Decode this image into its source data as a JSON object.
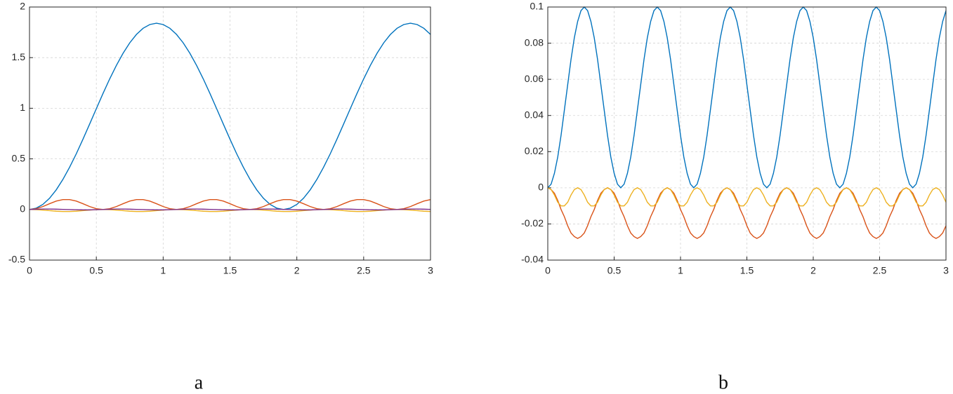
{
  "chart_data": [
    {
      "type": "line",
      "caption": "a",
      "x": [
        0,
        0.05,
        0.1,
        0.15,
        0.2,
        0.25,
        0.3,
        0.35,
        0.4,
        0.45,
        0.5,
        0.55,
        0.6,
        0.65,
        0.7,
        0.75,
        0.8,
        0.85,
        0.9,
        0.95,
        1,
        1.05,
        1.1,
        1.15,
        1.2,
        1.25,
        1.3,
        1.35,
        1.4,
        1.45,
        1.5,
        1.55,
        1.6,
        1.65,
        1.7,
        1.75,
        1.8,
        1.85,
        1.9,
        1.95,
        2,
        2.05,
        2.1,
        2.15,
        2.2,
        2.25,
        2.3,
        2.35,
        2.4,
        2.45,
        2.5,
        2.55,
        2.6,
        2.65,
        2.7,
        2.75,
        2.8,
        2.85,
        2.9,
        2.95,
        3
      ],
      "series": [
        {
          "color": "#0072bd",
          "values": [
            0,
            0.013,
            0.05,
            0.111,
            0.194,
            0.297,
            0.417,
            0.55,
            0.694,
            0.844,
            0.996,
            1.146,
            1.29,
            1.423,
            1.543,
            1.646,
            1.729,
            1.79,
            1.827,
            1.84,
            1.827,
            1.79,
            1.729,
            1.646,
            1.543,
            1.423,
            1.29,
            1.146,
            0.996,
            0.844,
            0.694,
            0.55,
            0.417,
            0.297,
            0.194,
            0.111,
            0.05,
            0.013,
            0,
            0.013,
            0.05,
            0.111,
            0.194,
            0.297,
            0.417,
            0.55,
            0.694,
            0.844,
            0.996,
            1.146,
            1.29,
            1.423,
            1.543,
            1.646,
            1.729,
            1.79,
            1.827,
            1.84,
            1.827,
            1.79,
            1.729
          ]
        },
        {
          "color": "#d95319",
          "values": [
            0,
            0.008,
            0.029,
            0.057,
            0.083,
            0.098,
            0.098,
            0.083,
            0.057,
            0.029,
            0.008,
            0,
            0.008,
            0.029,
            0.057,
            0.083,
            0.098,
            0.098,
            0.083,
            0.057,
            0.029,
            0.008,
            0,
            0.008,
            0.029,
            0.057,
            0.083,
            0.098,
            0.098,
            0.083,
            0.057,
            0.029,
            0.008,
            0,
            0.008,
            0.029,
            0.057,
            0.083,
            0.098,
            0.098,
            0.083,
            0.057,
            0.029,
            0.008,
            0,
            0.008,
            0.029,
            0.057,
            0.083,
            0.098,
            0.098,
            0.083,
            0.057,
            0.029,
            0.008,
            0,
            0.008,
            0.029,
            0.057,
            0.083,
            0.098
          ]
        },
        {
          "color": "#edb120",
          "values": [
            0,
            -0.002,
            -0.006,
            -0.011,
            -0.017,
            -0.02,
            -0.02,
            -0.017,
            -0.011,
            -0.006,
            -0.002,
            0,
            -0.002,
            -0.006,
            -0.011,
            -0.017,
            -0.02,
            -0.02,
            -0.017,
            -0.011,
            -0.006,
            -0.002,
            0,
            -0.002,
            -0.006,
            -0.011,
            -0.017,
            -0.02,
            -0.02,
            -0.017,
            -0.011,
            -0.006,
            -0.002,
            0,
            -0.002,
            -0.006,
            -0.011,
            -0.017,
            -0.02,
            -0.02,
            -0.017,
            -0.011,
            -0.006,
            -0.002,
            0,
            -0.002,
            -0.006,
            -0.011,
            -0.017,
            -0.02,
            -0.02,
            -0.017,
            -0.011,
            -0.006,
            -0.002,
            0,
            -0.002,
            -0.006,
            -0.011,
            -0.017,
            -0.02
          ]
        },
        {
          "color": "#7e2f8e",
          "values": [
            0,
            0.002,
            0.004,
            0.004,
            0.003,
            0.001,
            -0.001,
            -0.003,
            -0.004,
            -0.004,
            -0.002,
            0,
            0.002,
            0.004,
            0.004,
            0.003,
            0.001,
            -0.001,
            -0.003,
            -0.004,
            -0.004,
            -0.002,
            0,
            0.002,
            0.004,
            0.004,
            0.003,
            0.001,
            -0.001,
            -0.003,
            -0.004,
            -0.004,
            -0.002,
            0,
            0.002,
            0.004,
            0.004,
            0.003,
            0.001,
            -0.001,
            -0.003,
            -0.004,
            -0.004,
            -0.002,
            0,
            0.002,
            0.004,
            0.004,
            0.003,
            0.001,
            -0.001,
            -0.003,
            -0.004,
            -0.004,
            -0.002,
            0,
            0.002,
            0.004,
            0.004,
            0.003,
            0.001
          ]
        }
      ],
      "xlim": [
        0,
        3
      ],
      "xticks": [
        0,
        0.5,
        1,
        1.5,
        2,
        2.5,
        3
      ],
      "ylim": [
        -0.5,
        2
      ],
      "yticks": [
        -0.5,
        0,
        0.5,
        1,
        1.5,
        2
      ],
      "grid": true
    },
    {
      "type": "line",
      "caption": "b",
      "x": [
        0,
        0.025,
        0.05,
        0.075,
        0.1,
        0.125,
        0.15,
        0.175,
        0.2,
        0.225,
        0.25,
        0.275,
        0.3,
        0.325,
        0.35,
        0.375,
        0.4,
        0.425,
        0.45,
        0.475,
        0.5,
        0.525,
        0.55,
        0.575,
        0.6,
        0.625,
        0.65,
        0.675,
        0.7,
        0.725,
        0.75,
        0.775,
        0.8,
        0.825,
        0.85,
        0.875,
        0.9,
        0.925,
        0.95,
        0.975,
        1,
        1.025,
        1.05,
        1.075,
        1.1,
        1.125,
        1.15,
        1.175,
        1.2,
        1.225,
        1.25,
        1.275,
        1.3,
        1.325,
        1.35,
        1.375,
        1.4,
        1.425,
        1.45,
        1.475,
        1.5,
        1.525,
        1.55,
        1.575,
        1.6,
        1.625,
        1.65,
        1.675,
        1.7,
        1.725,
        1.75,
        1.775,
        1.8,
        1.825,
        1.85,
        1.875,
        1.9,
        1.925,
        1.95,
        1.975,
        2,
        2.025,
        2.05,
        2.075,
        2.1,
        2.125,
        2.15,
        2.175,
        2.2,
        2.225,
        2.25,
        2.275,
        2.3,
        2.325,
        2.35,
        2.375,
        2.4,
        2.425,
        2.45,
        2.475,
        2.5,
        2.525,
        2.55,
        2.575,
        2.6,
        2.625,
        2.65,
        2.675,
        2.7,
        2.725,
        2.75,
        2.775,
        2.8,
        2.825,
        2.85,
        2.875,
        2.9,
        2.925,
        2.95,
        2.975,
        3
      ],
      "series": [
        {
          "color": "#0072bd",
          "values": [
            0,
            0.002,
            0.008,
            0.017,
            0.029,
            0.043,
            0.057,
            0.071,
            0.083,
            0.092,
            0.098,
            0.1,
            0.098,
            0.092,
            0.083,
            0.071,
            0.057,
            0.043,
            0.029,
            0.017,
            0.008,
            0.002,
            0,
            0.002,
            0.008,
            0.017,
            0.029,
            0.043,
            0.057,
            0.071,
            0.083,
            0.092,
            0.098,
            0.1,
            0.098,
            0.092,
            0.083,
            0.071,
            0.057,
            0.043,
            0.029,
            0.017,
            0.008,
            0.002,
            0,
            0.002,
            0.008,
            0.017,
            0.029,
            0.043,
            0.057,
            0.071,
            0.083,
            0.092,
            0.098,
            0.1,
            0.098,
            0.092,
            0.083,
            0.071,
            0.057,
            0.043,
            0.029,
            0.017,
            0.008,
            0.002,
            0,
            0.002,
            0.008,
            0.017,
            0.029,
            0.043,
            0.057,
            0.071,
            0.083,
            0.092,
            0.098,
            0.1,
            0.098,
            0.092,
            0.083,
            0.071,
            0.057,
            0.043,
            0.029,
            0.017,
            0.008,
            0.002,
            0,
            0.002,
            0.008,
            0.017,
            0.029,
            0.043,
            0.057,
            0.071,
            0.083,
            0.092,
            0.098,
            0.1,
            0.098,
            0.092,
            0.083,
            0.071,
            0.057,
            0.043,
            0.029,
            0.017,
            0.008,
            0.002,
            0,
            0.002,
            0.008,
            0.017,
            0.029,
            0.043,
            0.057,
            0.071,
            0.083,
            0.092,
            0.098
          ]
        },
        {
          "color": "#d95319",
          "values": [
            0,
            -0.001,
            -0.003,
            -0.007,
            -0.012,
            -0.016,
            -0.021,
            -0.025,
            -0.027,
            -0.028,
            -0.027,
            -0.025,
            -0.021,
            -0.016,
            -0.012,
            -0.007,
            -0.003,
            -0.001,
            0,
            -0.001,
            -0.003,
            -0.007,
            -0.012,
            -0.016,
            -0.021,
            -0.025,
            -0.027,
            -0.028,
            -0.027,
            -0.025,
            -0.021,
            -0.016,
            -0.012,
            -0.007,
            -0.003,
            -0.001,
            0,
            -0.001,
            -0.003,
            -0.007,
            -0.012,
            -0.016,
            -0.021,
            -0.025,
            -0.027,
            -0.028,
            -0.027,
            -0.025,
            -0.021,
            -0.016,
            -0.012,
            -0.007,
            -0.003,
            -0.001,
            0,
            -0.001,
            -0.003,
            -0.007,
            -0.012,
            -0.016,
            -0.021,
            -0.025,
            -0.027,
            -0.028,
            -0.027,
            -0.025,
            -0.021,
            -0.016,
            -0.012,
            -0.007,
            -0.003,
            -0.001,
            0,
            -0.001,
            -0.003,
            -0.007,
            -0.012,
            -0.016,
            -0.021,
            -0.025,
            -0.027,
            -0.028,
            -0.027,
            -0.025,
            -0.021,
            -0.016,
            -0.012,
            -0.007,
            -0.003,
            -0.001,
            0,
            -0.001,
            -0.003,
            -0.007,
            -0.012,
            -0.016,
            -0.021,
            -0.025,
            -0.027,
            -0.028,
            -0.027,
            -0.025,
            -0.021,
            -0.016,
            -0.012,
            -0.007,
            -0.003,
            -0.001,
            0,
            -0.001,
            -0.003,
            -0.007,
            -0.012,
            -0.016,
            -0.021,
            -0.025,
            -0.027,
            -0.028,
            -0.027,
            -0.025,
            -0.021
          ]
        },
        {
          "color": "#edb120",
          "values": [
            0,
            -0.001,
            -0.004,
            -0.008,
            -0.01,
            -0.01,
            -0.008,
            -0.004,
            -0.001,
            0,
            -0.001,
            -0.004,
            -0.008,
            -0.01,
            -0.01,
            -0.008,
            -0.004,
            -0.001,
            0,
            -0.001,
            -0.004,
            -0.008,
            -0.01,
            -0.01,
            -0.008,
            -0.004,
            -0.001,
            0,
            -0.001,
            -0.004,
            -0.008,
            -0.01,
            -0.01,
            -0.008,
            -0.004,
            -0.001,
            0,
            -0.001,
            -0.004,
            -0.008,
            -0.01,
            -0.01,
            -0.008,
            -0.004,
            -0.001,
            0,
            -0.001,
            -0.004,
            -0.008,
            -0.01,
            -0.01,
            -0.008,
            -0.004,
            -0.001,
            0,
            -0.001,
            -0.004,
            -0.008,
            -0.01,
            -0.01,
            -0.008,
            -0.004,
            -0.001,
            0,
            -0.001,
            -0.004,
            -0.008,
            -0.01,
            -0.01,
            -0.008,
            -0.004,
            -0.001,
            0,
            -0.001,
            -0.004,
            -0.008,
            -0.01,
            -0.01,
            -0.008,
            -0.004,
            -0.001,
            0,
            -0.001,
            -0.004,
            -0.008,
            -0.01,
            -0.01,
            -0.008,
            -0.004,
            -0.001,
            0,
            -0.001,
            -0.004,
            -0.008,
            -0.01,
            -0.01,
            -0.008,
            -0.004,
            -0.001,
            0,
            -0.001,
            -0.004,
            -0.008,
            -0.01,
            -0.01,
            -0.008,
            -0.004,
            -0.001,
            0,
            -0.001,
            -0.004,
            -0.008,
            -0.01,
            -0.01,
            -0.008,
            -0.004,
            -0.001,
            0,
            -0.001,
            -0.004,
            -0.008
          ]
        }
      ],
      "xlim": [
        0,
        3
      ],
      "xticks": [
        0,
        0.5,
        1,
        1.5,
        2,
        2.5,
        3
      ],
      "ylim": [
        -0.04,
        0.1
      ],
      "yticks": [
        -0.04,
        -0.02,
        0,
        0.02,
        0.04,
        0.06,
        0.08,
        0.1
      ],
      "grid": true
    }
  ]
}
